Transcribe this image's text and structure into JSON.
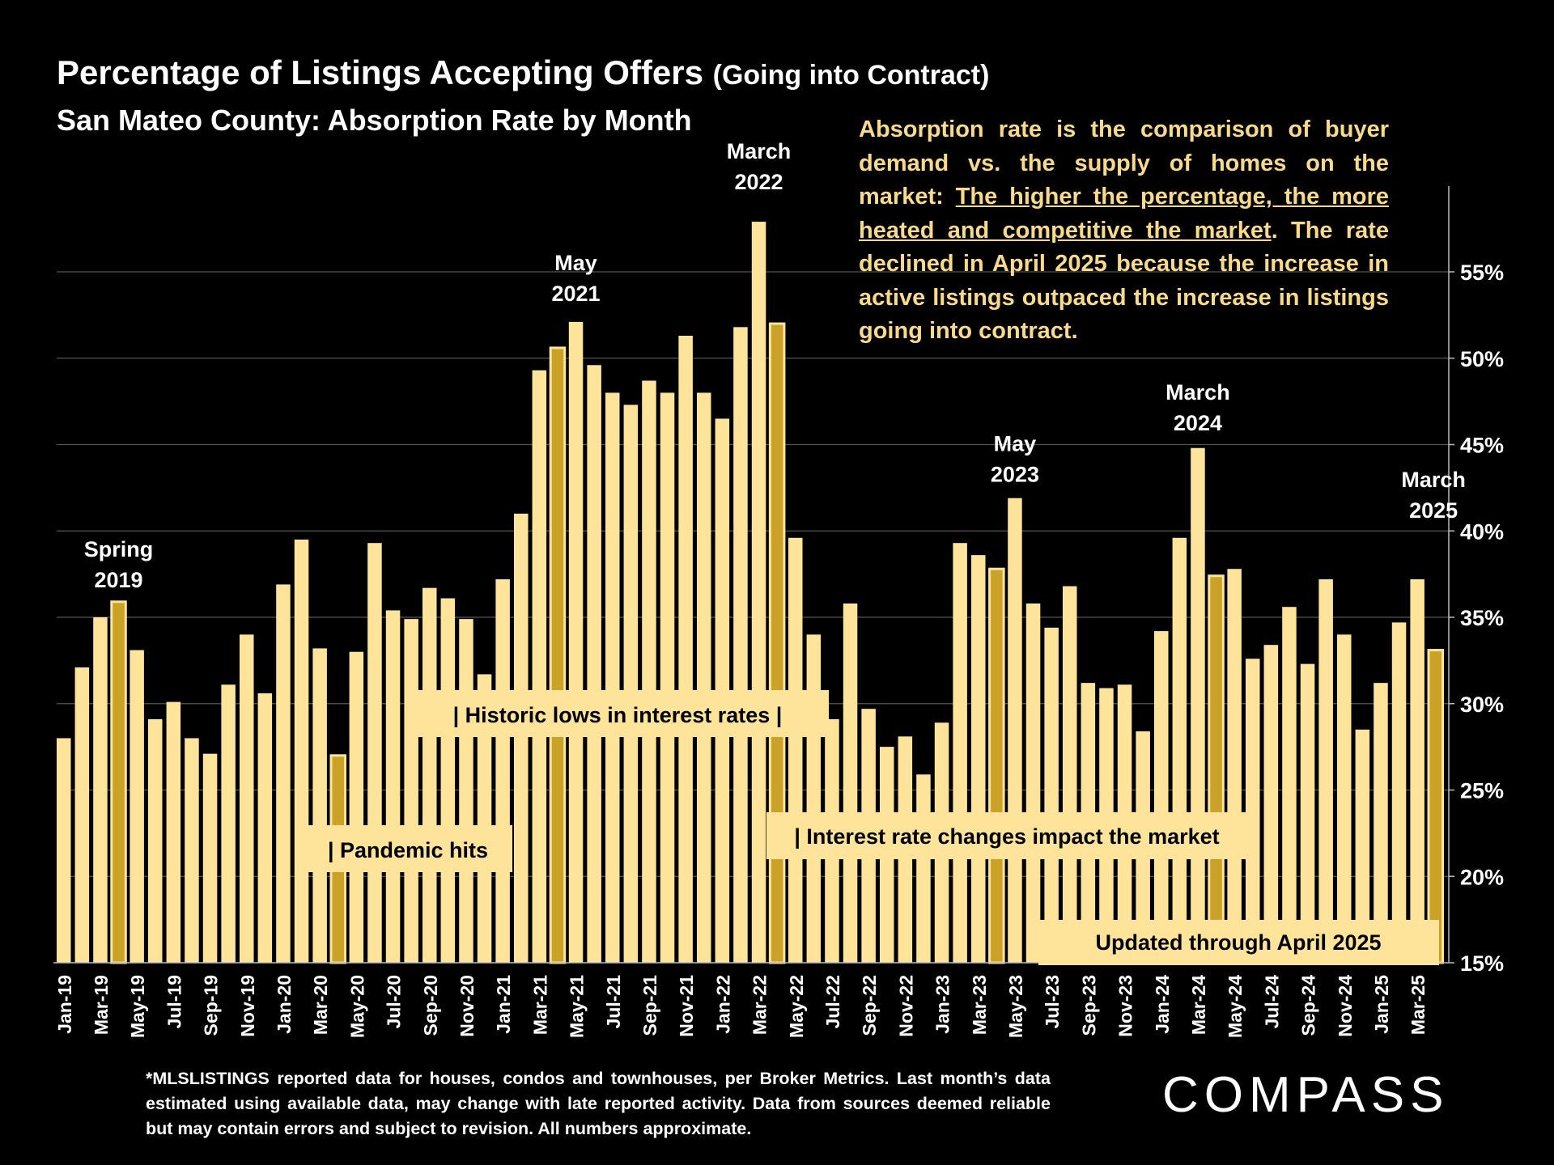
{
  "header": {
    "title": "Percentage of Listings Accepting Offers",
    "title_suffix": "(Going into Contract)",
    "subtitle": "San Mateo County:  Absorption Rate by Month"
  },
  "note": {
    "part1": "Absorption rate is the comparison of buyer demand vs. the supply of homes on the market: ",
    "underlined": "The higher the percentage, the more heated and competitive the market",
    "part2": ".  The rate declined in April 2025 because the increase in active listings outpaced the increase in listings going into contract."
  },
  "footnote": "*MLSLISTINGS reported data for houses, condos and townhouses, per Broker Metrics. Last month’s data estimated using available data, may change with late reported activity. Data from sources deemed reliable but may contain errors and subject to revision. All numbers approximate.",
  "logo": "COMPASS",
  "colors": {
    "background": "#000000",
    "bar": "#fde49a",
    "bar_highlight": "#c9a227",
    "note_text": "#f9d98a",
    "label_box": "#fde49a",
    "grid": "#555555"
  },
  "chart_data": {
    "type": "bar",
    "categories": [
      "Jan-19",
      "Feb-19",
      "Mar-19",
      "Apr-19",
      "May-19",
      "Jun-19",
      "Jul-19",
      "Aug-19",
      "Sep-19",
      "Oct-19",
      "Nov-19",
      "Dec-19",
      "Jan-20",
      "Feb-20",
      "Mar-20",
      "Apr-20",
      "May-20",
      "Jun-20",
      "Jul-20",
      "Aug-20",
      "Sep-20",
      "Oct-20",
      "Nov-20",
      "Dec-20",
      "Jan-21",
      "Feb-21",
      "Mar-21",
      "Apr-21",
      "May-21",
      "Jun-21",
      "Jul-21",
      "Aug-21",
      "Sep-21",
      "Oct-21",
      "Nov-21",
      "Dec-21",
      "Jan-22",
      "Feb-22",
      "Mar-22",
      "Apr-22",
      "May-22",
      "Jun-22",
      "Jul-22",
      "Aug-22",
      "Sep-22",
      "Oct-22",
      "Nov-22",
      "Dec-22",
      "Jan-23",
      "Feb-23",
      "Mar-23",
      "Apr-23",
      "May-23",
      "Jun-23",
      "Jul-23",
      "Aug-23",
      "Sep-23",
      "Oct-23",
      "Nov-23",
      "Dec-23",
      "Jan-24",
      "Feb-24",
      "Mar-24",
      "Apr-24",
      "May-24",
      "Jun-24",
      "Jul-24",
      "Aug-24",
      "Sep-24",
      "Oct-24",
      "Nov-24",
      "Dec-24",
      "Jan-25",
      "Feb-25",
      "Mar-25",
      "Apr-25"
    ],
    "x_tick_labels": [
      "Jan-19",
      "Mar-19",
      "May-19",
      "Jul-19",
      "Sep-19",
      "Nov-19",
      "Jan-20",
      "Mar-20",
      "May-20",
      "Jul-20",
      "Sep-20",
      "Nov-20",
      "Jan-21",
      "Mar-21",
      "May-21",
      "Jul-21",
      "Sep-21",
      "Nov-21",
      "Jan-22",
      "Mar-22",
      "May-22",
      "Jul-22",
      "Sep-22",
      "Nov-22",
      "Jan-23",
      "Mar-23",
      "May-23",
      "Jul-23",
      "Sep-23",
      "Nov-23",
      "Jan-24",
      "Mar-24",
      "May-24",
      "Jul-24",
      "Sep-24",
      "Nov-24",
      "Jan-25",
      "Mar-25"
    ],
    "values": [
      28.0,
      32.1,
      35.0,
      35.9,
      33.1,
      29.1,
      30.1,
      28.0,
      27.1,
      31.1,
      34.0,
      30.6,
      36.9,
      39.5,
      33.2,
      27.0,
      33.0,
      39.3,
      35.4,
      34.9,
      36.7,
      36.1,
      34.9,
      31.7,
      37.2,
      41.0,
      49.3,
      50.6,
      52.1,
      49.6,
      48.0,
      47.3,
      48.7,
      48.0,
      51.3,
      48.0,
      46.5,
      51.8,
      57.9,
      52.0,
      39.6,
      34.0,
      29.1,
      35.8,
      29.7,
      27.5,
      28.1,
      25.9,
      28.9,
      39.3,
      38.6,
      37.8,
      41.9,
      35.8,
      34.4,
      36.8,
      31.2,
      30.9,
      31.1,
      28.4,
      34.2,
      39.6,
      44.8,
      37.4,
      37.8,
      32.6,
      33.4,
      35.6,
      32.3,
      37.2,
      34.0,
      28.5,
      31.2,
      34.7,
      37.2,
      33.1
    ],
    "highlighted": [
      "Apr-19",
      "Apr-20",
      "Apr-21",
      "Apr-22",
      "Apr-23",
      "Apr-24",
      "Apr-25"
    ],
    "y_ticks": [
      "15%",
      "20%",
      "25%",
      "30%",
      "35%",
      "40%",
      "45%",
      "50%",
      "55%"
    ],
    "ylim": [
      15,
      58
    ],
    "grid": true,
    "annotations": [
      {
        "line1": "Spring",
        "line2": "2019",
        "category": "Apr-19"
      },
      {
        "line1": "May",
        "line2": "2021",
        "category": "May-21"
      },
      {
        "line1": "March",
        "line2": "2022",
        "category": "Mar-22"
      },
      {
        "line1": "May",
        "line2": "2023",
        "category": "May-23"
      },
      {
        "line1": "March",
        "line2": "2024",
        "category": "Mar-24"
      },
      {
        "line1": "March",
        "line2": "2025",
        "category": "Mar-25"
      }
    ],
    "event_labels": [
      {
        "text": "|  Historic lows in interest rates   |"
      },
      {
        "text": "| Pandemic hits"
      },
      {
        "text": "| Interest rate changes impact the market"
      },
      {
        "text": "Updated through April 2025"
      }
    ]
  }
}
